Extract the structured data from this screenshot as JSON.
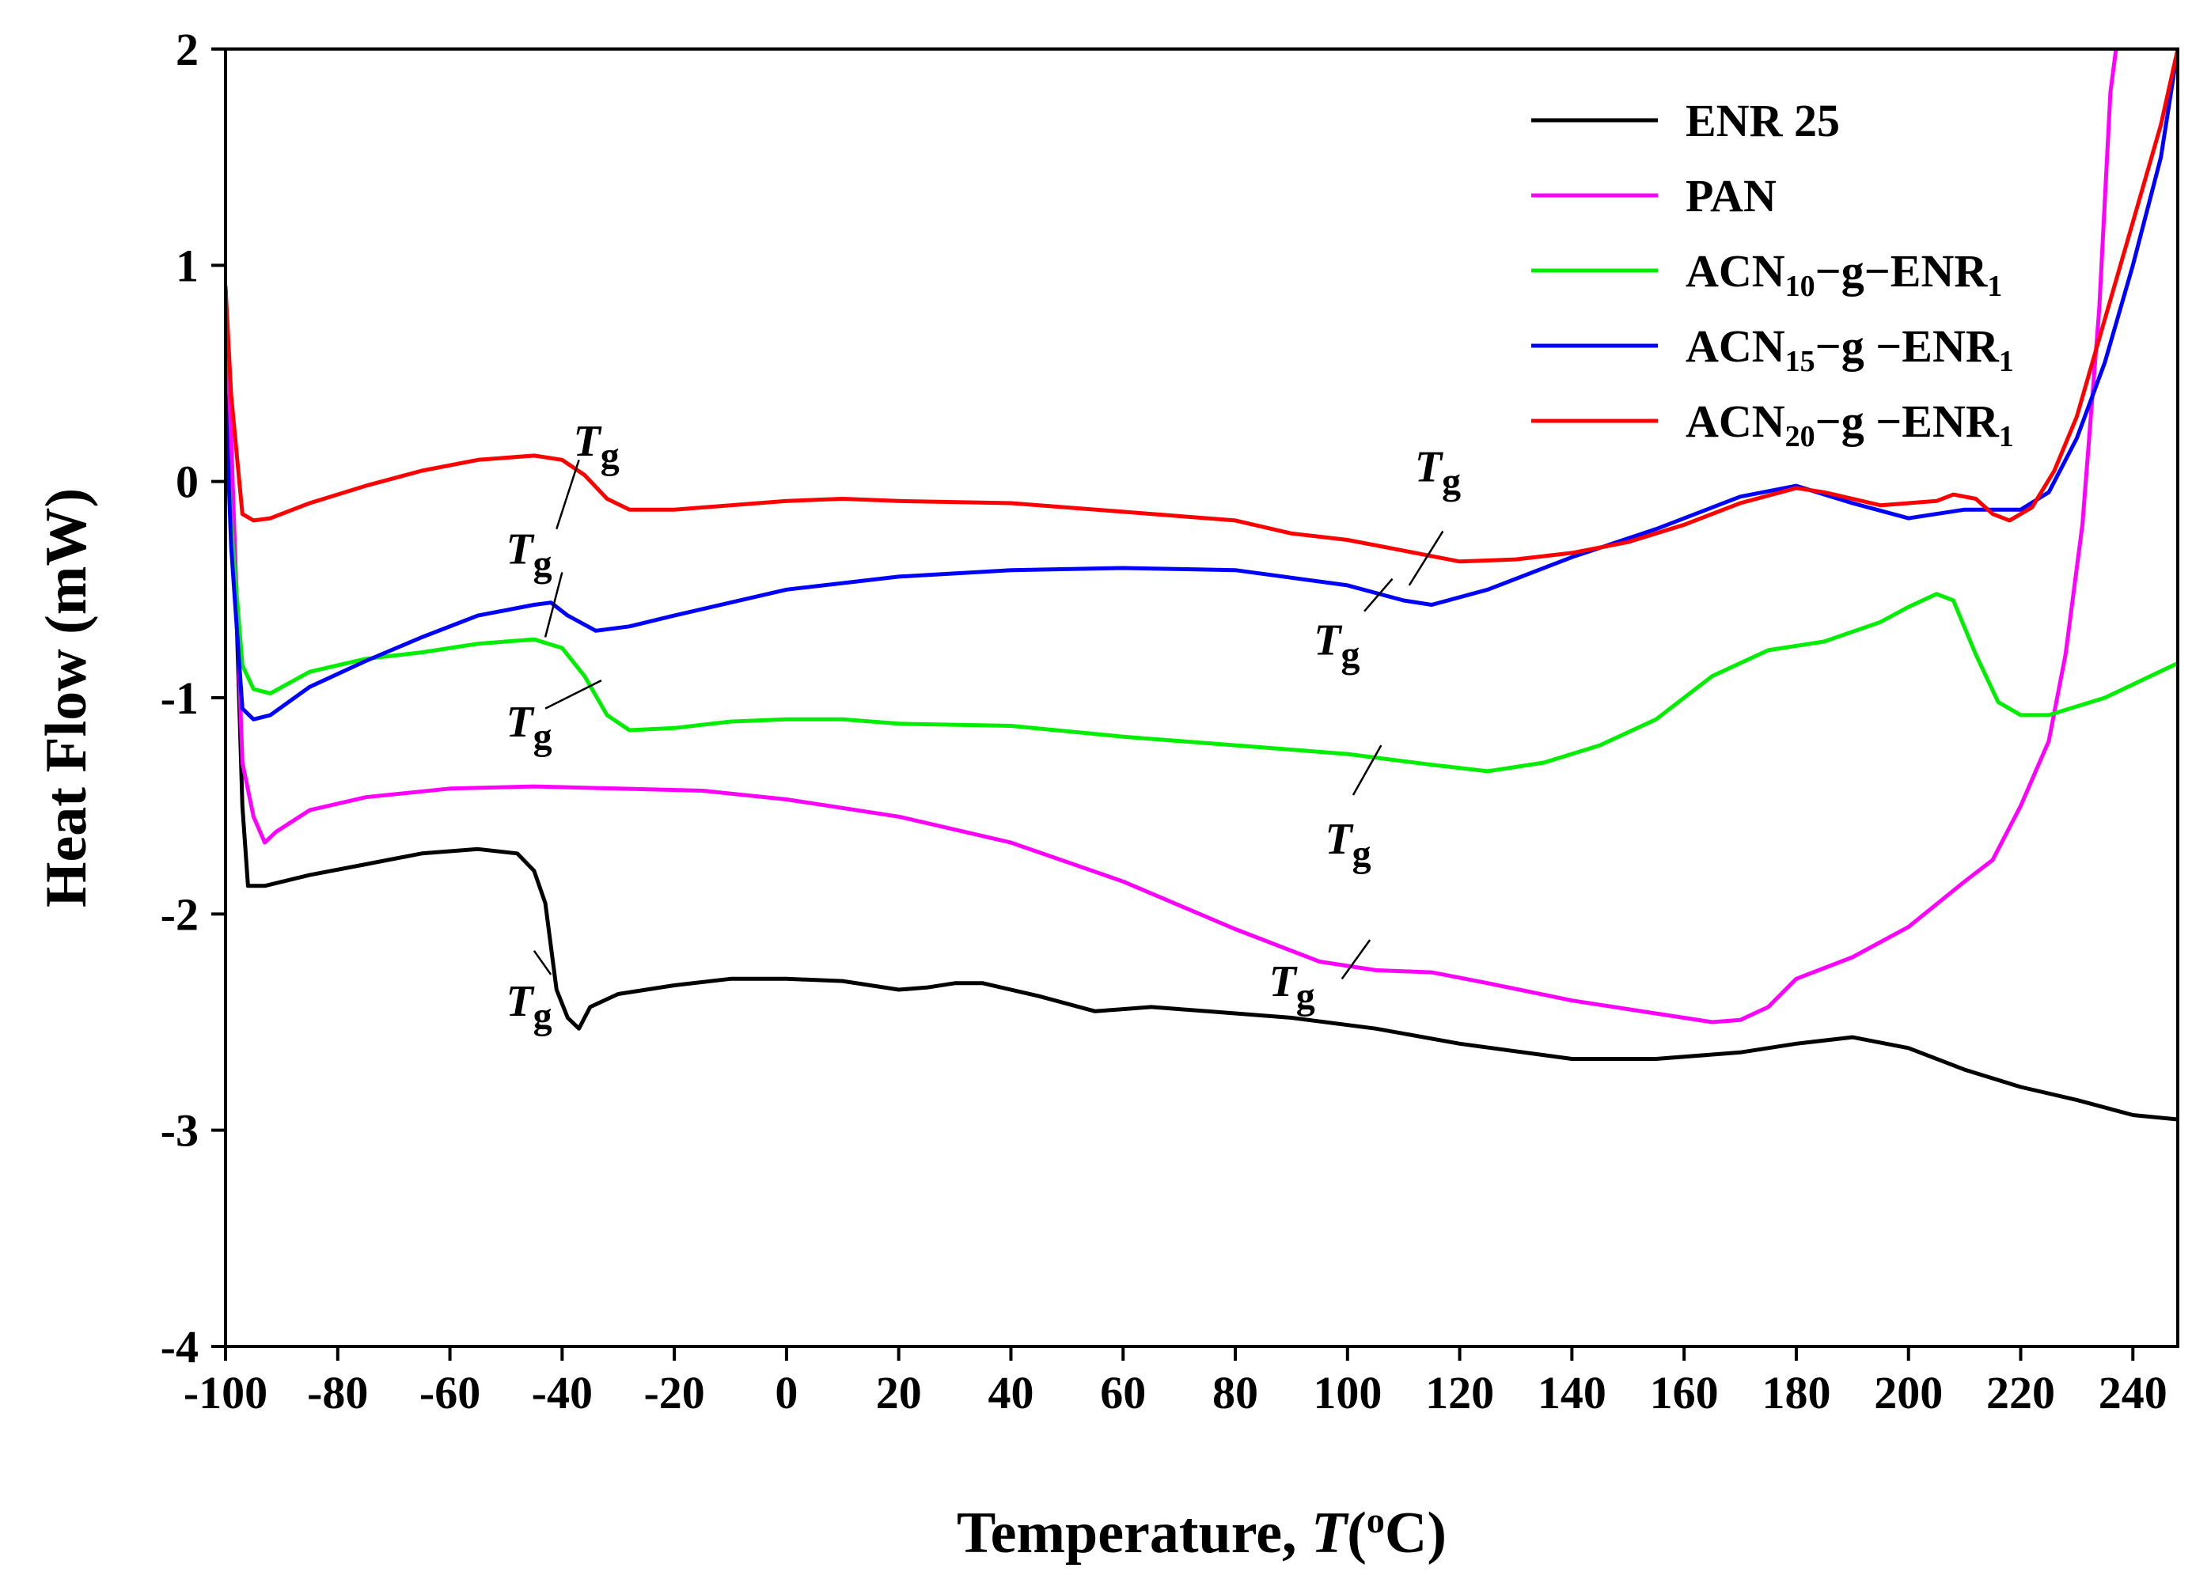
{
  "chart_data": {
    "type": "line",
    "title": "",
    "xlabel": "Temperature, T(°C)",
    "xlabel_parts": {
      "prefix": "Temperature, ",
      "var": "T",
      "open": "(",
      "sup": "o",
      "unit": "C)"
    },
    "ylabel": "Heat Flow (mW)",
    "xlim": [
      -100,
      248
    ],
    "ylim": [
      -4,
      2
    ],
    "xticks": [
      -100,
      -80,
      -60,
      -40,
      -20,
      0,
      20,
      40,
      60,
      80,
      100,
      120,
      140,
      160,
      180,
      200,
      220,
      240
    ],
    "yticks": [
      -4,
      -3,
      -2,
      -1,
      0,
      1,
      2
    ],
    "grid": false,
    "legend_position": "top-right",
    "series": [
      {
        "name": "ENR 25",
        "label_parts": {
          "base": "ENR 25"
        },
        "color": "#000000",
        "points": [
          [
            -100,
            0.9
          ],
          [
            -99,
            0.2
          ],
          [
            -97,
            -1.5
          ],
          [
            -96,
            -1.87
          ],
          [
            -93,
            -1.87
          ],
          [
            -85,
            -1.82
          ],
          [
            -75,
            -1.77
          ],
          [
            -65,
            -1.72
          ],
          [
            -55,
            -1.7
          ],
          [
            -48,
            -1.72
          ],
          [
            -45,
            -1.8
          ],
          [
            -43,
            -1.95
          ],
          [
            -41,
            -2.35
          ],
          [
            -39,
            -2.48
          ],
          [
            -37,
            -2.53
          ],
          [
            -35,
            -2.43
          ],
          [
            -30,
            -2.37
          ],
          [
            -20,
            -2.33
          ],
          [
            -10,
            -2.3
          ],
          [
            0,
            -2.3
          ],
          [
            10,
            -2.31
          ],
          [
            20,
            -2.35
          ],
          [
            25,
            -2.34
          ],
          [
            30,
            -2.32
          ],
          [
            35,
            -2.32
          ],
          [
            45,
            -2.38
          ],
          [
            55,
            -2.45
          ],
          [
            60,
            -2.44
          ],
          [
            65,
            -2.43
          ],
          [
            75,
            -2.45
          ],
          [
            90,
            -2.48
          ],
          [
            105,
            -2.53
          ],
          [
            120,
            -2.6
          ],
          [
            140,
            -2.67
          ],
          [
            155,
            -2.67
          ],
          [
            170,
            -2.64
          ],
          [
            180,
            -2.6
          ],
          [
            190,
            -2.57
          ],
          [
            200,
            -2.62
          ],
          [
            210,
            -2.72
          ],
          [
            220,
            -2.8
          ],
          [
            230,
            -2.86
          ],
          [
            240,
            -2.93
          ],
          [
            248,
            -2.95
          ]
        ]
      },
      {
        "name": "PAN",
        "label_parts": {
          "base": "PAN"
        },
        "color": "#ff00ff",
        "points": [
          [
            -100,
            0.7
          ],
          [
            -99,
            0.2
          ],
          [
            -97,
            -1.3
          ],
          [
            -95,
            -1.55
          ],
          [
            -93,
            -1.67
          ],
          [
            -91,
            -1.62
          ],
          [
            -85,
            -1.52
          ],
          [
            -75,
            -1.46
          ],
          [
            -60,
            -1.42
          ],
          [
            -45,
            -1.41
          ],
          [
            -30,
            -1.42
          ],
          [
            -15,
            -1.43
          ],
          [
            0,
            -1.47
          ],
          [
            20,
            -1.55
          ],
          [
            40,
            -1.67
          ],
          [
            60,
            -1.85
          ],
          [
            80,
            -2.07
          ],
          [
            95,
            -2.22
          ],
          [
            105,
            -2.26
          ],
          [
            115,
            -2.27
          ],
          [
            125,
            -2.32
          ],
          [
            140,
            -2.4
          ],
          [
            155,
            -2.46
          ],
          [
            165,
            -2.5
          ],
          [
            170,
            -2.49
          ],
          [
            175,
            -2.43
          ],
          [
            180,
            -2.3
          ],
          [
            190,
            -2.2
          ],
          [
            200,
            -2.06
          ],
          [
            210,
            -1.85
          ],
          [
            215,
            -1.75
          ],
          [
            220,
            -1.5
          ],
          [
            225,
            -1.2
          ],
          [
            228,
            -0.8
          ],
          [
            231,
            -0.2
          ],
          [
            234,
            0.8
          ],
          [
            236,
            1.8
          ],
          [
            237,
            2.0
          ]
        ]
      },
      {
        "name": "ACN10-g-ENR1",
        "label_parts": {
          "base": "ACN",
          "sub1": "10",
          "mid": "−g−ENR",
          "sub2": "1"
        },
        "color": "#00ee00",
        "points": [
          [
            -100,
            0.3
          ],
          [
            -99,
            -0.2
          ],
          [
            -97,
            -0.85
          ],
          [
            -95,
            -0.96
          ],
          [
            -92,
            -0.98
          ],
          [
            -85,
            -0.88
          ],
          [
            -75,
            -0.82
          ],
          [
            -65,
            -0.79
          ],
          [
            -55,
            -0.75
          ],
          [
            -45,
            -0.73
          ],
          [
            -40,
            -0.77
          ],
          [
            -36,
            -0.9
          ],
          [
            -32,
            -1.08
          ],
          [
            -28,
            -1.15
          ],
          [
            -20,
            -1.14
          ],
          [
            -10,
            -1.11
          ],
          [
            0,
            -1.1
          ],
          [
            10,
            -1.1
          ],
          [
            20,
            -1.12
          ],
          [
            40,
            -1.13
          ],
          [
            60,
            -1.18
          ],
          [
            80,
            -1.22
          ],
          [
            100,
            -1.26
          ],
          [
            115,
            -1.31
          ],
          [
            125,
            -1.34
          ],
          [
            135,
            -1.3
          ],
          [
            145,
            -1.22
          ],
          [
            155,
            -1.1
          ],
          [
            165,
            -0.9
          ],
          [
            175,
            -0.78
          ],
          [
            185,
            -0.74
          ],
          [
            195,
            -0.65
          ],
          [
            200,
            -0.58
          ],
          [
            205,
            -0.52
          ],
          [
            208,
            -0.55
          ],
          [
            212,
            -0.8
          ],
          [
            216,
            -1.02
          ],
          [
            220,
            -1.08
          ],
          [
            225,
            -1.08
          ],
          [
            235,
            -1.0
          ],
          [
            248,
            -0.84
          ]
        ]
      },
      {
        "name": "ACN15-g-ENR1",
        "label_parts": {
          "base": "ACN",
          "sub1": "15",
          "mid": "−g −ENR",
          "sub2": "1"
        },
        "color": "#0000ff",
        "points": [
          [
            -100,
            0.4
          ],
          [
            -99,
            -0.3
          ],
          [
            -97,
            -1.05
          ],
          [
            -95,
            -1.1
          ],
          [
            -92,
            -1.08
          ],
          [
            -85,
            -0.95
          ],
          [
            -75,
            -0.83
          ],
          [
            -65,
            -0.72
          ],
          [
            -55,
            -0.62
          ],
          [
            -45,
            -0.57
          ],
          [
            -42,
            -0.56
          ],
          [
            -39,
            -0.62
          ],
          [
            -34,
            -0.69
          ],
          [
            -28,
            -0.67
          ],
          [
            -20,
            -0.62
          ],
          [
            0,
            -0.5
          ],
          [
            20,
            -0.44
          ],
          [
            40,
            -0.41
          ],
          [
            60,
            -0.4
          ],
          [
            80,
            -0.41
          ],
          [
            100,
            -0.48
          ],
          [
            110,
            -0.55
          ],
          [
            115,
            -0.57
          ],
          [
            125,
            -0.5
          ],
          [
            140,
            -0.35
          ],
          [
            155,
            -0.22
          ],
          [
            170,
            -0.07
          ],
          [
            180,
            -0.02
          ],
          [
            190,
            -0.1
          ],
          [
            200,
            -0.17
          ],
          [
            210,
            -0.13
          ],
          [
            220,
            -0.13
          ],
          [
            225,
            -0.05
          ],
          [
            230,
            0.2
          ],
          [
            235,
            0.55
          ],
          [
            240,
            1.0
          ],
          [
            245,
            1.5
          ],
          [
            248,
            2.0
          ]
        ]
      },
      {
        "name": "ACN20-g-ENR1",
        "label_parts": {
          "base": "ACN",
          "sub1": "20",
          "mid": "−g −ENR",
          "sub2": "1"
        },
        "color": "#ff0000",
        "points": [
          [
            -100,
            0.9
          ],
          [
            -99,
            0.4
          ],
          [
            -97,
            -0.15
          ],
          [
            -95,
            -0.18
          ],
          [
            -92,
            -0.17
          ],
          [
            -85,
            -0.1
          ],
          [
            -75,
            -0.02
          ],
          [
            -65,
            0.05
          ],
          [
            -55,
            0.1
          ],
          [
            -45,
            0.12
          ],
          [
            -40,
            0.1
          ],
          [
            -36,
            0.03
          ],
          [
            -32,
            -0.08
          ],
          [
            -28,
            -0.13
          ],
          [
            -20,
            -0.13
          ],
          [
            0,
            -0.09
          ],
          [
            10,
            -0.08
          ],
          [
            20,
            -0.09
          ],
          [
            40,
            -0.1
          ],
          [
            60,
            -0.14
          ],
          [
            80,
            -0.18
          ],
          [
            90,
            -0.24
          ],
          [
            100,
            -0.27
          ],
          [
            110,
            -0.32
          ],
          [
            120,
            -0.37
          ],
          [
            130,
            -0.36
          ],
          [
            140,
            -0.33
          ],
          [
            150,
            -0.28
          ],
          [
            160,
            -0.2
          ],
          [
            170,
            -0.1
          ],
          [
            180,
            -0.03
          ],
          [
            185,
            -0.05
          ],
          [
            195,
            -0.11
          ],
          [
            205,
            -0.09
          ],
          [
            208,
            -0.06
          ],
          [
            212,
            -0.08
          ],
          [
            215,
            -0.15
          ],
          [
            218,
            -0.18
          ],
          [
            222,
            -0.12
          ],
          [
            226,
            0.05
          ],
          [
            230,
            0.3
          ],
          [
            235,
            0.75
          ],
          [
            240,
            1.2
          ],
          [
            245,
            1.65
          ],
          [
            248,
            2.0
          ]
        ]
      }
    ],
    "annotations": [
      {
        "label": "Tg",
        "text_x": -38,
        "text_y": 0.12,
        "line": [
          [
            -41,
            -0.22
          ],
          [
            -37,
            0.1
          ]
        ]
      },
      {
        "label": "Tg",
        "text_x": -50,
        "text_y": -0.38,
        "line": [
          [
            -43,
            -0.72
          ],
          [
            -40,
            -0.42
          ]
        ]
      },
      {
        "label": "Tg",
        "text_x": -50,
        "text_y": -1.18,
        "line": [
          [
            -43,
            -1.05
          ],
          [
            -33,
            -0.92
          ]
        ]
      },
      {
        "label": "Tg",
        "text_x": -50,
        "text_y": -2.47,
        "line": [
          [
            -45,
            -2.17
          ],
          [
            -42,
            -2.28
          ]
        ]
      },
      {
        "label": "Tg",
        "text_x": 112,
        "text_y": 0.0,
        "line": [
          [
            111,
            -0.48
          ],
          [
            117,
            -0.23
          ]
        ]
      },
      {
        "label": "Tg",
        "text_x": 94,
        "text_y": -0.8,
        "line": [
          [
            103,
            -0.6
          ],
          [
            108,
            -0.45
          ]
        ]
      },
      {
        "label": "Tg",
        "text_x": 96,
        "text_y": -1.72,
        "line": [
          [
            101,
            -1.45
          ],
          [
            106,
            -1.22
          ]
        ]
      },
      {
        "label": "Tg",
        "text_x": 86,
        "text_y": -2.38,
        "line": [
          [
            99,
            -2.3
          ],
          [
            104,
            -2.12
          ]
        ]
      }
    ]
  }
}
